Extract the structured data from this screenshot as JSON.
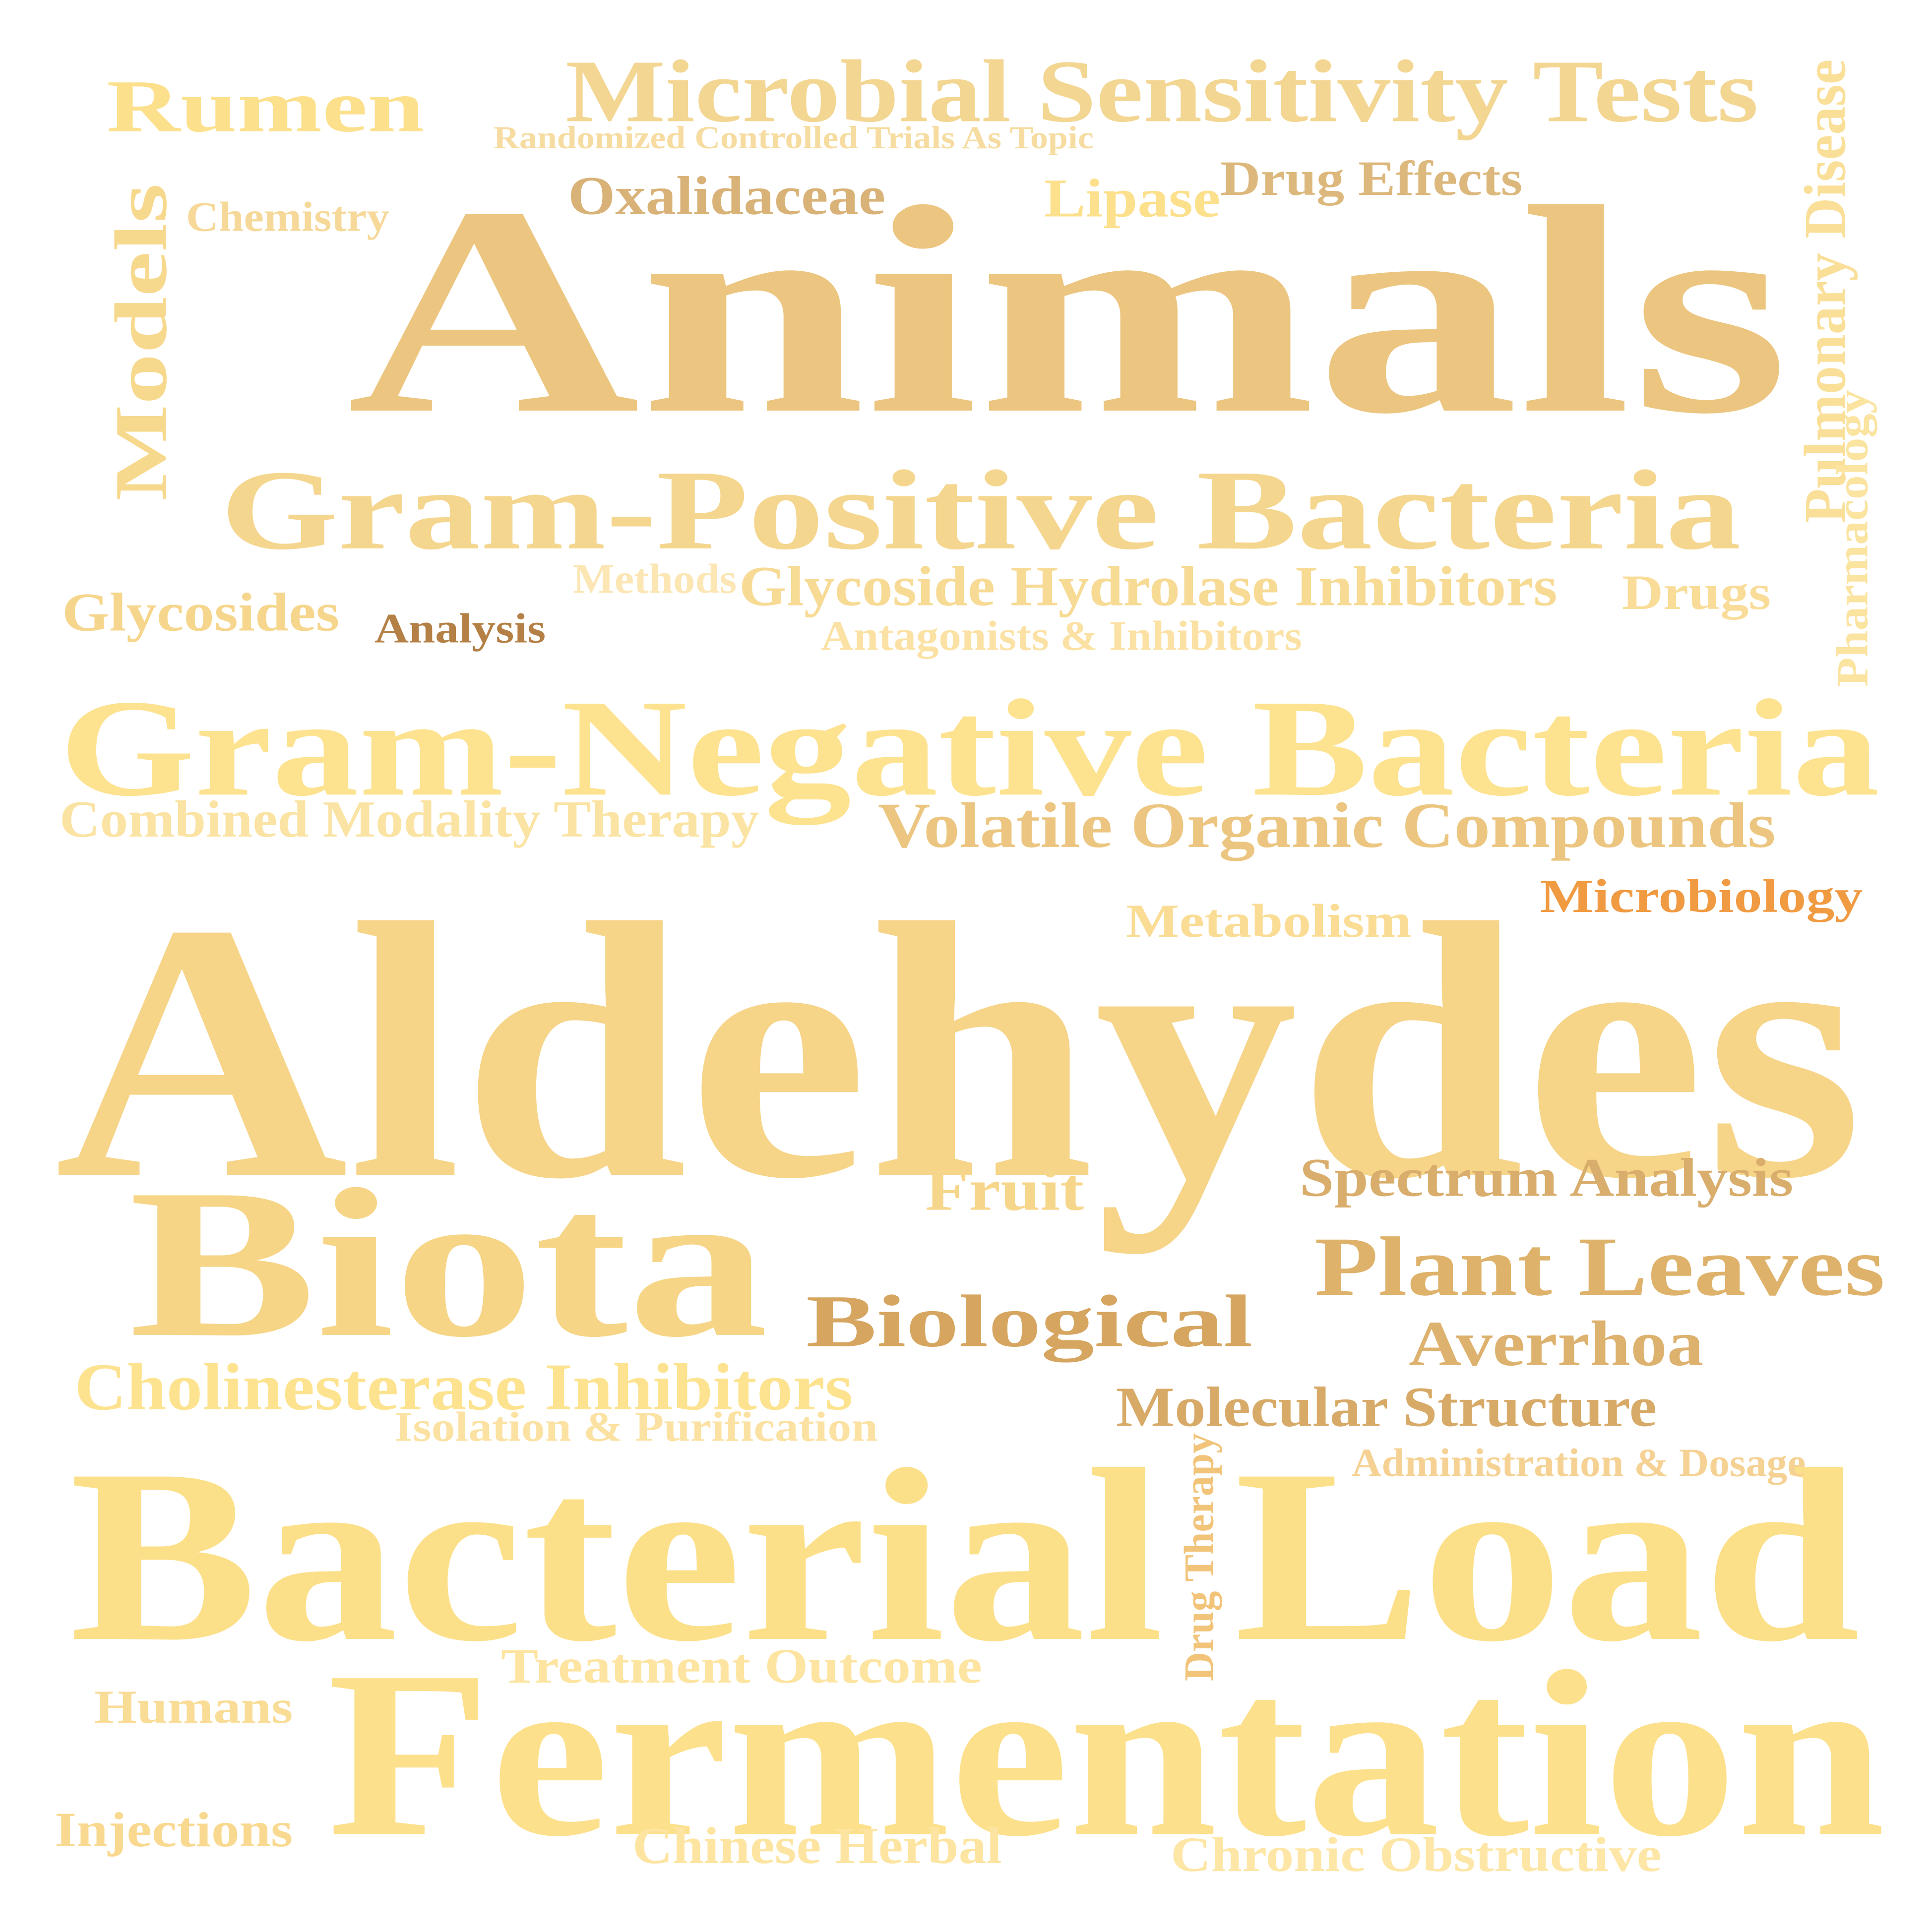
{
  "words": [
    {
      "id": "animals",
      "text": "Animals",
      "color": "#ecc680"
    },
    {
      "id": "aldehydes",
      "text": "Aldehydes",
      "color": "#f6d488"
    },
    {
      "id": "bacterial-load",
      "text": "Bacterial Load",
      "color": "#fce089"
    },
    {
      "id": "fermentation",
      "text": "Fermentation",
      "color": "#fde08c"
    },
    {
      "id": "biota",
      "text": "Biota",
      "color": "#f6d587"
    },
    {
      "id": "gram-negative-bacteria",
      "text": "Gram-Negative Bacteria",
      "color": "#fde28f"
    },
    {
      "id": "gram-positive-bacteria",
      "text": "Gram-Positive Bacteria",
      "color": "#f5d68f"
    },
    {
      "id": "microbial-sensitivity-tests",
      "text": "Microbial Sensitivity Tests",
      "color": "#f2d692"
    },
    {
      "id": "rumen",
      "text": "Rumen",
      "color": "#fce08c"
    },
    {
      "id": "models",
      "text": "Models",
      "color": "#f7d98e"
    },
    {
      "id": "biological",
      "text": "Biological",
      "color": "#d6a660"
    },
    {
      "id": "plant-leaves",
      "text": "Plant Leaves",
      "color": "#deb26a"
    },
    {
      "id": "volatile-organic-compounds",
      "text": "Volatile Organic Compounds",
      "color": "#ecc680"
    },
    {
      "id": "oxalidaceae",
      "text": "Oxalidaceae",
      "color": "#d9b278"
    },
    {
      "id": "lipase",
      "text": "Lipase",
      "color": "#fce08c"
    },
    {
      "id": "drug-effects",
      "text": "Drug Effects",
      "color": "#dcb87c"
    },
    {
      "id": "randomized-controlled-trials",
      "text": "Randomized Controlled Trials As Topic",
      "color": "#f6dca0"
    },
    {
      "id": "chemistry",
      "text": "Chemistry",
      "color": "#f6d898"
    },
    {
      "id": "pulmonary-disease",
      "text": "Pulmonary Disease",
      "color": "#f9df98"
    },
    {
      "id": "pharmacology",
      "text": "Pharmacology",
      "color": "#fbe3a0"
    },
    {
      "id": "glycosides",
      "text": "Glycosides",
      "color": "#f6d68c"
    },
    {
      "id": "analysis",
      "text": "Analysis",
      "color": "#b48046"
    },
    {
      "id": "methods",
      "text": "Methods",
      "color": "#fbe6b4"
    },
    {
      "id": "glycoside-hydrolase-inhibitors",
      "text": "Glycoside Hydrolase Inhibitors",
      "color": "#f7da93"
    },
    {
      "id": "antagonists-inhibitors",
      "text": "Antagonists & Inhibitors",
      "color": "#fbe2a4"
    },
    {
      "id": "drugs",
      "text": "Drugs",
      "color": "#f9dc98"
    },
    {
      "id": "combined-modality-therapy",
      "text": "Combined Modality Therapy",
      "color": "#fae3a3"
    },
    {
      "id": "microbiology",
      "text": "Microbiology",
      "color": "#f09a42"
    },
    {
      "id": "metabolism",
      "text": "Metabolism",
      "color": "#fadc94"
    },
    {
      "id": "fruit",
      "text": "Fruit",
      "color": "#f6d68a"
    },
    {
      "id": "spectrum-analysis",
      "text": "Spectrum Analysis",
      "color": "#d9ad6c"
    },
    {
      "id": "averrhoa",
      "text": "Averrhoa",
      "color": "#ddb16e"
    },
    {
      "id": "cholinesterase-inhibitors",
      "text": "Cholinesterase Inhibitors",
      "color": "#fde390"
    },
    {
      "id": "isolation-purification",
      "text": "Isolation & Purification",
      "color": "#fbe2a2"
    },
    {
      "id": "molecular-structure",
      "text": "Molecular Structure",
      "color": "#d8aa68"
    },
    {
      "id": "administration-dosage",
      "text": "Administration & Dosage",
      "color": "#f5d294"
    },
    {
      "id": "drug-therapy",
      "text": "Drug Therapy",
      "color": "#f1c47a"
    },
    {
      "id": "treatment-outcome",
      "text": "Treatment Outcome",
      "color": "#fde4a0"
    },
    {
      "id": "humans",
      "text": "Humans",
      "color": "#f9dc96"
    },
    {
      "id": "injections",
      "text": "Injections",
      "color": "#f9d990"
    },
    {
      "id": "chinese-herbal",
      "text": "Chinese Herbal",
      "color": "#fde4a0"
    },
    {
      "id": "chronic-obstructive",
      "text": "Chronic Obstructive",
      "color": "#fde6a6"
    }
  ]
}
